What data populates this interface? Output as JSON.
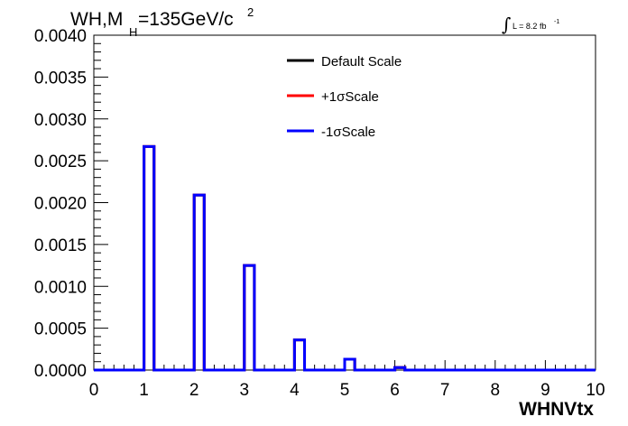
{
  "chart_data": {
    "type": "line",
    "title": {
      "main": "WH,M",
      "subscript": "H",
      "rest": "=135GeV/c",
      "superscript": "2"
    },
    "annotation": {
      "integral_symbol": "∫",
      "text": "L = 8.2 fb",
      "superscript": "-1"
    },
    "xlabel": "WHNVtx",
    "ylabel": "",
    "xlim": [
      0,
      10
    ],
    "ylim": [
      0,
      0.004
    ],
    "x_ticks": [
      "0",
      "1",
      "2",
      "3",
      "4",
      "5",
      "6",
      "7",
      "8",
      "9",
      "10"
    ],
    "y_ticks": [
      "0.0000",
      "0.0005",
      "0.0010",
      "0.0015",
      "0.0020",
      "0.0025",
      "0.0030",
      "0.0035",
      "0.0040"
    ],
    "bin_edges": [
      0,
      0.2,
      0.4,
      0.6,
      0.8,
      1.0,
      1.2,
      1.4,
      1.6,
      1.8,
      2.0,
      2.2,
      2.4,
      2.6,
      2.8,
      3.0,
      3.2,
      3.4,
      3.6,
      3.8,
      4.0,
      4.2,
      4.4,
      4.6,
      4.8,
      5.0,
      5.2,
      5.4,
      5.6,
      5.8,
      6.0,
      6.2,
      6.4,
      6.6,
      6.8,
      7.0,
      7.2,
      7.4,
      7.6,
      7.8,
      8.0,
      8.2,
      8.4,
      8.6,
      8.8,
      9.0,
      9.2,
      9.4,
      9.6,
      9.8,
      10.0
    ],
    "series": [
      {
        "name": "Default Scale",
        "color": "#000000",
        "values": [
          0,
          0,
          0,
          0,
          0,
          0.00267,
          0,
          0,
          0,
          0,
          0.00209,
          0,
          0,
          0,
          0,
          0.00125,
          0,
          0,
          0,
          0,
          0.00036,
          0,
          0,
          0,
          0,
          0.00013,
          0,
          0,
          0,
          0,
          3e-05,
          0,
          0,
          0,
          0,
          0,
          0,
          0,
          0,
          0,
          0,
          0,
          0,
          0,
          0,
          0,
          0,
          0,
          0,
          0
        ]
      },
      {
        "name": "+1σScale",
        "color": "#ff0000",
        "values": [
          0,
          0,
          0,
          0,
          0,
          0.00267,
          0,
          0,
          0,
          0,
          0.00209,
          0,
          0,
          0,
          0,
          0.00125,
          0,
          0,
          0,
          0,
          0.00036,
          0,
          0,
          0,
          0,
          0.00013,
          0,
          0,
          0,
          0,
          3e-05,
          0,
          0,
          0,
          0,
          0,
          0,
          0,
          0,
          0,
          0,
          0,
          0,
          0,
          0,
          0,
          0,
          0,
          0,
          0
        ]
      },
      {
        "name": "-1σScale",
        "color": "#0000ff",
        "values": [
          0,
          0,
          0,
          0,
          0,
          0.00267,
          0,
          0,
          0,
          0,
          0.00209,
          0,
          0,
          0,
          0,
          0.00125,
          0,
          0,
          0,
          0,
          0.00036,
          0,
          0,
          0,
          0,
          0.00013,
          0,
          0,
          0,
          0,
          3e-05,
          0,
          0,
          0,
          0,
          0,
          0,
          0,
          0,
          0,
          0,
          0,
          0,
          0,
          0,
          0,
          0,
          0,
          0,
          0
        ]
      }
    ],
    "legend_position": "top-center",
    "grid": false
  }
}
